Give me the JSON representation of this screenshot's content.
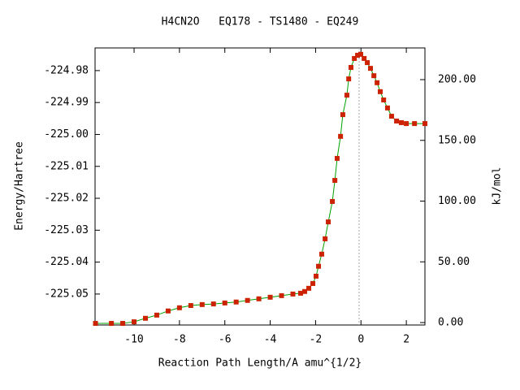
{
  "chart_data": {
    "type": "line",
    "title": "H4CN2O   EQ178 - TS1480 - EQ249",
    "xlabel": "Reaction Path Length/A amu^{1/2}",
    "ylabel": "Energy/Hartree",
    "y2label": "kJ/mol",
    "x": [
      -11.7,
      -11,
      -10.5,
      -10,
      -9.5,
      -9,
      -8.5,
      -8,
      -7.5,
      -7,
      -6.5,
      -6,
      -5.5,
      -5,
      -4.5,
      -4,
      -3.5,
      -3,
      -2.66,
      -2.48,
      -2.3,
      -2.12,
      -1.98,
      -1.87,
      -1.73,
      -1.58,
      -1.44,
      -1.26,
      -1.15,
      -1.05,
      -0.9,
      -0.8,
      -0.62,
      -0.54,
      -0.44,
      -0.29,
      -0.15,
      -0.01,
      0.14,
      0.28,
      0.42,
      0.57,
      0.71,
      0.85,
      1.0,
      1.17,
      1.35,
      1.57,
      1.78,
      2.0,
      2.36,
      2.82
    ],
    "values": [
      -225.0592,
      -225.0592,
      -225.0592,
      -225.0587,
      -225.0576,
      -225.0566,
      -225.0553,
      -225.0543,
      -225.0536,
      -225.0533,
      -225.0531,
      -225.0528,
      -225.0525,
      -225.052,
      -225.0515,
      -225.051,
      -225.0505,
      -225.05,
      -225.04975,
      -225.0492,
      -225.0482,
      -225.0467,
      -225.0444,
      -225.0413,
      -225.0375,
      -225.0327,
      -225.0274,
      -225.021,
      -225.0144,
      -225.0075,
      -225.0006,
      -224.9938,
      -224.9877,
      -224.9826,
      -224.979,
      -224.9762,
      -224.9752,
      -224.9749,
      -224.9762,
      -224.9775,
      -224.9793,
      -224.9816,
      -224.9838,
      -224.9866,
      -224.9892,
      -224.9917,
      -224.9943,
      -224.9958,
      -224.9963,
      -224.9966,
      -224.9966,
      -224.9966
    ],
    "color": "#00a000",
    "marker_color": "#cc2200",
    "xlim": [
      -11.72,
      2.82
    ],
    "xticks": [
      -10,
      -8,
      -6,
      -4,
      -2,
      0,
      2
    ],
    "ylim": [
      -225.0597,
      -224.9729
    ],
    "yticks": [
      -225.05,
      -225.04,
      -225.03,
      -225.02,
      -225.01,
      {
        "value": -225.0,
        "label": "-225.00"
      },
      -224.99,
      -224.98
    ],
    "y2lim": [
      -2.0,
      226.1
    ],
    "y2ticks": [
      {
        "value": 0,
        "label": "0.00"
      },
      {
        "value": 50,
        "label": "50.00"
      },
      {
        "value": 100,
        "label": "100.00"
      },
      {
        "value": 150,
        "label": "150.00"
      },
      {
        "value": 200,
        "label": "200.00"
      }
    ]
  }
}
